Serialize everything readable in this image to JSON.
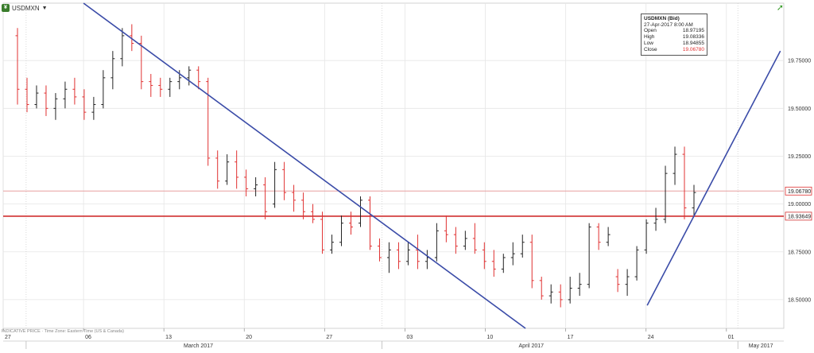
{
  "header": {
    "symbol_label": "USDMXN",
    "symbol_icon": "currency-pair-icon",
    "dropdown_icon": "chevron-down-icon",
    "corner_icon": "trend-arrow-icon"
  },
  "info_box": {
    "title": "USDMXN (Bid)",
    "timestamp": "27-Apr-2017 8:00 AM",
    "rows": [
      {
        "label": "Open",
        "value": "18.97195"
      },
      {
        "label": "High",
        "value": "19.08336"
      },
      {
        "label": "Low",
        "value": "18.94855"
      },
      {
        "label": "Close",
        "value": "19.06780"
      }
    ]
  },
  "footer_note": "INDICATIVE PRICE · Time Zone: Eastern Time (US & Canada)",
  "chart_data": {
    "type": "ohlc",
    "y_range": [
      18.35,
      20.05
    ],
    "y_ticks": [
      {
        "value": 18.5,
        "label": "18.50000"
      },
      {
        "value": 18.75,
        "label": "18.75000"
      },
      {
        "value": 19.0,
        "label": "19.00000"
      },
      {
        "value": 19.25,
        "label": "19.25000"
      },
      {
        "value": 19.5,
        "label": "19.50000"
      },
      {
        "value": 19.75,
        "label": "19.75000"
      }
    ],
    "x_day_range": [
      0,
      68
    ],
    "x_ticks": [
      {
        "day": 0,
        "label": "27"
      },
      {
        "day": 7,
        "label": "06"
      },
      {
        "day": 14,
        "label": "13"
      },
      {
        "day": 21,
        "label": "20"
      },
      {
        "day": 28,
        "label": "27"
      },
      {
        "day": 35,
        "label": "03"
      },
      {
        "day": 42,
        "label": "10"
      },
      {
        "day": 49,
        "label": "17"
      },
      {
        "day": 56,
        "label": "24"
      },
      {
        "day": 63,
        "label": "01"
      }
    ],
    "month_labels": [
      {
        "day": 17,
        "label": "March 2017"
      },
      {
        "day": 46,
        "label": "April 2017"
      },
      {
        "day": 66,
        "label": "May 2017"
      }
    ],
    "month_separators": [
      2,
      33,
      64
    ],
    "grid": true,
    "price_tags": [
      {
        "value": 19.0678,
        "label": "19.06780",
        "color": "#e03030",
        "line": "#e8a0a0",
        "width": 1
      },
      {
        "value": 18.93649,
        "label": "18.93649",
        "color": "#d03030",
        "line": "#d03030",
        "width": 1.6
      }
    ],
    "trendlines": [
      {
        "x1": 7,
        "y1": 20.05,
        "x2": 45.5,
        "y2": 18.35,
        "color": "#3b4ca8"
      },
      {
        "x1": 56.1,
        "y1": 18.47,
        "x2": 67.7,
        "y2": 19.8,
        "color": "#3b4ca8"
      }
    ],
    "down_color": "#e03030",
    "up_color": "#222222",
    "bars": [
      [
        19.88,
        19.92,
        19.52,
        19.6
      ],
      [
        19.6,
        19.66,
        19.48,
        19.52
      ],
      [
        19.52,
        19.62,
        19.5,
        19.58
      ],
      [
        19.58,
        19.62,
        19.46,
        19.5
      ],
      [
        19.5,
        19.58,
        19.44,
        19.55
      ],
      [
        19.55,
        19.64,
        19.5,
        19.6
      ],
      [
        19.6,
        19.66,
        19.52,
        19.56
      ],
      [
        19.56,
        19.6,
        19.44,
        19.48
      ],
      [
        19.48,
        19.56,
        19.44,
        19.52
      ],
      [
        19.52,
        19.7,
        19.5,
        19.66
      ],
      [
        19.66,
        19.8,
        19.6,
        19.76
      ],
      [
        19.76,
        19.92,
        19.72,
        19.88
      ],
      [
        19.88,
        19.94,
        19.8,
        19.84
      ],
      [
        19.84,
        19.88,
        19.6,
        19.64
      ],
      [
        19.64,
        19.68,
        19.56,
        19.62
      ],
      [
        19.62,
        19.66,
        19.56,
        19.6
      ],
      [
        19.6,
        19.66,
        19.56,
        19.64
      ],
      [
        19.64,
        19.7,
        19.6,
        19.66
      ],
      [
        19.66,
        19.72,
        19.62,
        19.7
      ],
      [
        19.7,
        19.72,
        19.6,
        19.64
      ],
      [
        19.64,
        19.66,
        19.2,
        19.24
      ],
      [
        19.24,
        19.28,
        19.08,
        19.12
      ],
      [
        19.12,
        19.26,
        19.1,
        19.22
      ],
      [
        19.22,
        19.28,
        19.08,
        19.14
      ],
      [
        19.14,
        19.18,
        19.04,
        19.08
      ],
      [
        19.08,
        19.14,
        19.04,
        19.1
      ],
      [
        19.1,
        19.14,
        18.92,
        18.96
      ],
      [
        19.0,
        19.22,
        18.98,
        19.18
      ],
      [
        19.18,
        19.22,
        19.02,
        19.06
      ],
      [
        19.06,
        19.1,
        18.96,
        19.02
      ],
      [
        19.02,
        19.06,
        18.92,
        18.96
      ],
      [
        18.96,
        19.0,
        18.9,
        18.92
      ],
      [
        18.92,
        18.96,
        18.74,
        18.76
      ],
      [
        18.76,
        18.84,
        18.74,
        18.8
      ],
      [
        18.8,
        18.94,
        18.78,
        18.9
      ],
      [
        18.9,
        18.96,
        18.84,
        18.88
      ],
      [
        18.9,
        19.04,
        18.88,
        19.02
      ],
      [
        19.02,
        19.04,
        18.76,
        18.78
      ],
      [
        18.78,
        18.82,
        18.7,
        18.72
      ],
      [
        18.72,
        18.8,
        18.64,
        18.76
      ],
      [
        18.76,
        18.8,
        18.66,
        18.7
      ],
      [
        18.7,
        18.8,
        18.68,
        18.76
      ],
      [
        18.76,
        18.84,
        18.66,
        18.7
      ],
      [
        18.7,
        18.76,
        18.66,
        18.72
      ],
      [
        18.72,
        18.9,
        18.7,
        18.86
      ],
      [
        18.86,
        18.94,
        18.8,
        18.84
      ],
      [
        18.84,
        18.88,
        18.74,
        18.78
      ],
      [
        18.78,
        18.86,
        18.76,
        18.82
      ],
      [
        18.82,
        18.9,
        18.74,
        18.76
      ],
      [
        18.76,
        18.8,
        18.66,
        18.7
      ],
      [
        18.7,
        18.76,
        18.62,
        18.66
      ],
      [
        18.66,
        18.74,
        18.64,
        18.72
      ],
      [
        18.72,
        18.8,
        18.68,
        18.74
      ],
      [
        18.74,
        18.84,
        18.72,
        18.8
      ],
      [
        18.8,
        18.84,
        18.56,
        18.6
      ],
      [
        18.6,
        18.62,
        18.5,
        18.52
      ],
      [
        18.52,
        18.58,
        18.48,
        18.54
      ],
      [
        18.54,
        18.58,
        18.46,
        18.5
      ],
      [
        18.5,
        18.62,
        18.48,
        18.56
      ],
      [
        18.56,
        18.64,
        18.52,
        18.58
      ],
      [
        18.58,
        18.9,
        18.56,
        18.88
      ],
      [
        18.88,
        18.9,
        18.76,
        18.8
      ],
      [
        18.8,
        18.88,
        18.78,
        18.84
      ],
      [
        18.62,
        18.66,
        18.54,
        18.58
      ],
      [
        18.58,
        18.66,
        18.52,
        18.62
      ],
      [
        18.62,
        18.78,
        18.6,
        18.76
      ],
      [
        18.76,
        18.92,
        18.74,
        18.9
      ],
      [
        18.9,
        18.98,
        18.86,
        18.92
      ],
      [
        18.92,
        19.2,
        18.9,
        19.16
      ],
      [
        19.16,
        19.3,
        19.1,
        19.26
      ],
      [
        19.26,
        19.3,
        18.92,
        18.98
      ],
      [
        18.98,
        19.1,
        18.94,
        19.06
      ]
    ]
  }
}
